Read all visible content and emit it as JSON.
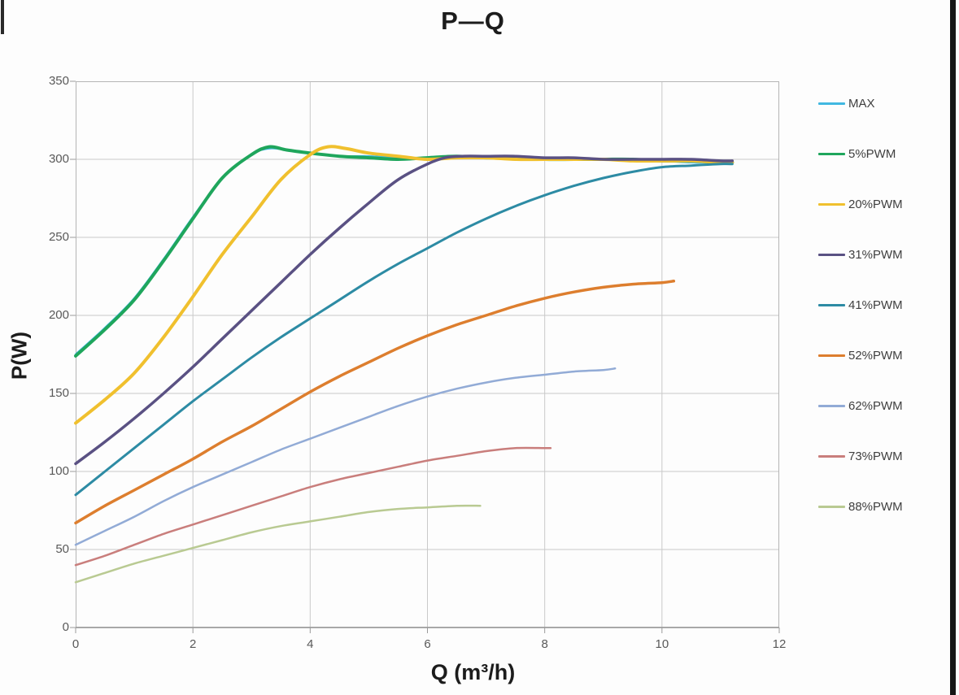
{
  "page": {
    "border_color": "#161616",
    "background": "#fdfdfd"
  },
  "chart_data": {
    "type": "line",
    "title": "P—Q",
    "xlabel": "Q (m³/h)",
    "ylabel": "P(W)",
    "xlim": [
      0,
      12
    ],
    "ylim": [
      0,
      350
    ],
    "x_ticks": [
      0,
      2,
      4,
      6,
      8,
      10,
      12
    ],
    "y_ticks": [
      0,
      50,
      100,
      150,
      200,
      250,
      300,
      350
    ],
    "grid": true,
    "grid_color": "#c9c9c9",
    "axis_color": "#9a9a9a",
    "plot_border_color": "#b5b5b5",
    "tick_text_color": "#595959",
    "legend_position": "right",
    "series": [
      {
        "name": "MAX",
        "color": "#41b8e1",
        "width": 2.5,
        "points": [
          [
            0,
            175
          ],
          [
            0.5,
            192
          ],
          [
            1,
            211
          ],
          [
            1.5,
            236
          ],
          [
            2,
            263
          ],
          [
            2.5,
            288
          ],
          [
            3,
            303
          ],
          [
            3.3,
            307
          ],
          [
            3.6,
            306
          ],
          [
            4,
            304
          ],
          [
            4.5,
            302
          ],
          [
            5,
            302
          ],
          [
            5.5,
            301
          ],
          [
            6,
            301
          ],
          [
            6.5,
            302
          ],
          [
            7,
            301
          ],
          [
            7.5,
            301
          ],
          [
            8,
            300
          ],
          [
            8.5,
            300
          ],
          [
            9,
            300
          ],
          [
            9.5,
            299
          ],
          [
            10,
            299
          ],
          [
            10.5,
            298
          ],
          [
            11,
            298
          ],
          [
            11.2,
            298
          ]
        ]
      },
      {
        "name": "5%PWM",
        "color": "#1fa65c",
        "width": 4,
        "points": [
          [
            0,
            174
          ],
          [
            0.5,
            191
          ],
          [
            1,
            210
          ],
          [
            1.5,
            235
          ],
          [
            2,
            262
          ],
          [
            2.5,
            288
          ],
          [
            3,
            303
          ],
          [
            3.3,
            308
          ],
          [
            3.6,
            306
          ],
          [
            4,
            304
          ],
          [
            4.5,
            302
          ],
          [
            5,
            301
          ],
          [
            5.5,
            300
          ],
          [
            6,
            301
          ],
          [
            6.5,
            302
          ],
          [
            7,
            301
          ],
          [
            7.5,
            301
          ],
          [
            8,
            300
          ],
          [
            8.5,
            300
          ],
          [
            9,
            300
          ],
          [
            9.5,
            300
          ],
          [
            10,
            299
          ],
          [
            10.5,
            299
          ],
          [
            11,
            298
          ],
          [
            11.2,
            298
          ]
        ]
      },
      {
        "name": "20%PWM",
        "color": "#f0c02e",
        "width": 4,
        "points": [
          [
            0,
            131
          ],
          [
            0.5,
            146
          ],
          [
            1,
            163
          ],
          [
            1.5,
            186
          ],
          [
            2,
            212
          ],
          [
            2.5,
            239
          ],
          [
            3,
            263
          ],
          [
            3.5,
            287
          ],
          [
            4,
            303
          ],
          [
            4.3,
            308
          ],
          [
            4.6,
            307
          ],
          [
            5,
            304
          ],
          [
            5.5,
            302
          ],
          [
            6,
            300
          ],
          [
            6.5,
            301
          ],
          [
            7,
            301
          ],
          [
            7.5,
            300
          ],
          [
            8,
            300
          ],
          [
            8.5,
            300
          ],
          [
            9,
            300
          ],
          [
            9.5,
            299
          ],
          [
            10,
            299
          ],
          [
            10.5,
            299
          ],
          [
            11,
            298
          ],
          [
            11.2,
            298
          ]
        ]
      },
      {
        "name": "31%PWM",
        "color": "#5a5183",
        "width": 3.5,
        "points": [
          [
            0,
            105
          ],
          [
            0.5,
            119
          ],
          [
            1,
            134
          ],
          [
            1.5,
            150
          ],
          [
            2,
            167
          ],
          [
            2.5,
            185
          ],
          [
            3,
            203
          ],
          [
            3.5,
            221
          ],
          [
            4,
            239
          ],
          [
            4.5,
            256
          ],
          [
            5,
            272
          ],
          [
            5.5,
            287
          ],
          [
            6,
            297
          ],
          [
            6.3,
            301
          ],
          [
            6.6,
            302
          ],
          [
            7,
            302
          ],
          [
            7.5,
            302
          ],
          [
            8,
            301
          ],
          [
            8.5,
            301
          ],
          [
            9,
            300
          ],
          [
            9.5,
            300
          ],
          [
            10,
            300
          ],
          [
            10.5,
            300
          ],
          [
            11,
            299
          ],
          [
            11.2,
            299
          ]
        ]
      },
      {
        "name": "41%PWM",
        "color": "#2d8ba4",
        "width": 3,
        "points": [
          [
            0,
            85
          ],
          [
            0.5,
            100
          ],
          [
            1,
            115
          ],
          [
            1.5,
            130
          ],
          [
            2,
            145
          ],
          [
            2.5,
            159
          ],
          [
            3,
            173
          ],
          [
            3.5,
            186
          ],
          [
            4,
            198
          ],
          [
            4.5,
            210
          ],
          [
            5,
            222
          ],
          [
            5.5,
            233
          ],
          [
            6,
            243
          ],
          [
            6.5,
            253
          ],
          [
            7,
            262
          ],
          [
            7.5,
            270
          ],
          [
            8,
            277
          ],
          [
            8.5,
            283
          ],
          [
            9,
            288
          ],
          [
            9.5,
            292
          ],
          [
            10,
            295
          ],
          [
            10.5,
            296
          ],
          [
            11,
            297
          ],
          [
            11.2,
            297
          ]
        ]
      },
      {
        "name": "52%PWM",
        "color": "#dd7e2e",
        "width": 3.5,
        "points": [
          [
            0,
            67
          ],
          [
            0.5,
            78
          ],
          [
            1,
            88
          ],
          [
            1.5,
            98
          ],
          [
            2,
            108
          ],
          [
            2.5,
            119
          ],
          [
            3,
            129
          ],
          [
            3.5,
            140
          ],
          [
            4,
            151
          ],
          [
            4.5,
            161
          ],
          [
            5,
            170
          ],
          [
            5.5,
            179
          ],
          [
            6,
            187
          ],
          [
            6.5,
            194
          ],
          [
            7,
            200
          ],
          [
            7.5,
            206
          ],
          [
            8,
            211
          ],
          [
            8.5,
            215
          ],
          [
            9,
            218
          ],
          [
            9.5,
            220
          ],
          [
            10,
            221
          ],
          [
            10.2,
            222
          ]
        ]
      },
      {
        "name": "62%PWM",
        "color": "#92abd6",
        "width": 2.5,
        "points": [
          [
            0,
            53
          ],
          [
            0.5,
            62
          ],
          [
            1,
            71
          ],
          [
            1.5,
            81
          ],
          [
            2,
            90
          ],
          [
            2.5,
            98
          ],
          [
            3,
            106
          ],
          [
            3.5,
            114
          ],
          [
            4,
            121
          ],
          [
            4.5,
            128
          ],
          [
            5,
            135
          ],
          [
            5.5,
            142
          ],
          [
            6,
            148
          ],
          [
            6.5,
            153
          ],
          [
            7,
            157
          ],
          [
            7.5,
            160
          ],
          [
            8,
            162
          ],
          [
            8.5,
            164
          ],
          [
            9,
            165
          ],
          [
            9.2,
            166
          ]
        ]
      },
      {
        "name": "73%PWM",
        "color": "#c97e7c",
        "width": 2.5,
        "points": [
          [
            0,
            40
          ],
          [
            0.5,
            46
          ],
          [
            1,
            53
          ],
          [
            1.5,
            60
          ],
          [
            2,
            66
          ],
          [
            2.5,
            72
          ],
          [
            3,
            78
          ],
          [
            3.5,
            84
          ],
          [
            4,
            90
          ],
          [
            4.5,
            95
          ],
          [
            5,
            99
          ],
          [
            5.5,
            103
          ],
          [
            6,
            107
          ],
          [
            6.5,
            110
          ],
          [
            7,
            113
          ],
          [
            7.5,
            115
          ],
          [
            8,
            115
          ],
          [
            8.1,
            115
          ]
        ]
      },
      {
        "name": "88%PWM",
        "color": "#b9ca92",
        "width": 2.5,
        "points": [
          [
            0,
            29
          ],
          [
            0.5,
            35
          ],
          [
            1,
            41
          ],
          [
            1.5,
            46
          ],
          [
            2,
            51
          ],
          [
            2.5,
            56
          ],
          [
            3,
            61
          ],
          [
            3.5,
            65
          ],
          [
            4,
            68
          ],
          [
            4.5,
            71
          ],
          [
            5,
            74
          ],
          [
            5.5,
            76
          ],
          [
            6,
            77
          ],
          [
            6.5,
            78
          ],
          [
            6.9,
            78
          ]
        ]
      }
    ]
  }
}
